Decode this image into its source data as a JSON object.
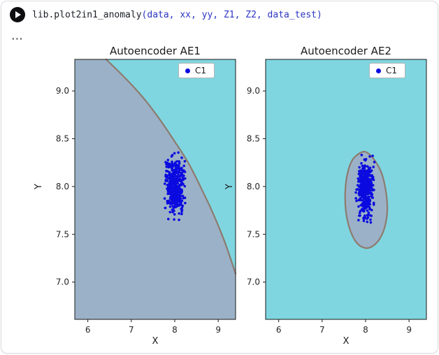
{
  "header": {
    "code_function": "lib.plot2in1_anomaly",
    "code_args": "(data, xx, yy, Z1, Z2, data_test)",
    "more_icon": "⋯"
  },
  "chart_data": [
    {
      "type": "scatter",
      "subtype": "decision-boundary-contour",
      "title": "Autoencoder AE1",
      "xlabel": "X",
      "ylabel": "Y",
      "xlim": [
        5.7,
        9.4
      ],
      "ylim": [
        6.61,
        9.33
      ],
      "xticks": [
        "6",
        "7",
        "8",
        "9"
      ],
      "yticks": [
        "7.0",
        "7.5",
        "8.0",
        "8.5",
        "9.0"
      ],
      "legend": [
        {
          "label": "C1",
          "color": "#0b0be0"
        }
      ],
      "legend_loc": "upper right",
      "grid": false,
      "colors": {
        "background": "#7fd6e0",
        "region": "#9bb1c7",
        "boundary": "#8d7b6f"
      },
      "boundary": [
        [
          6.42,
          9.33
        ],
        [
          6.74,
          9.19
        ],
        [
          7.06,
          9.04
        ],
        [
          7.38,
          8.87
        ],
        [
          7.69,
          8.68
        ],
        [
          8.0,
          8.47
        ],
        [
          8.31,
          8.25
        ],
        [
          8.6,
          7.99
        ],
        [
          8.88,
          7.72
        ],
        [
          9.15,
          7.42
        ],
        [
          9.4,
          7.09
        ]
      ],
      "region_close": [
        [
          9.4,
          6.61
        ],
        [
          5.7,
          6.61
        ],
        [
          5.7,
          9.33
        ]
      ],
      "cluster": {
        "label": "C1",
        "center": [
          8.0,
          8.0
        ],
        "std": [
          0.1,
          0.15
        ],
        "count": 420,
        "seed": 12,
        "color": "#0b0be0",
        "radius": 1.8
      }
    },
    {
      "type": "scatter",
      "subtype": "decision-boundary-contour",
      "title": "Autoencoder AE2",
      "xlabel": "X",
      "ylabel": "Y",
      "xlim": [
        5.7,
        9.4
      ],
      "ylim": [
        6.61,
        9.33
      ],
      "xticks": [
        "6",
        "7",
        "8",
        "9"
      ],
      "yticks": [
        "7.0",
        "7.5",
        "8.0",
        "8.5",
        "9.0"
      ],
      "legend": [
        {
          "label": "C1",
          "color": "#0b0be0"
        }
      ],
      "legend_loc": "upper right",
      "grid": false,
      "colors": {
        "background": "#7fd6e0",
        "region": "#9bb1c7",
        "boundary": "#8d7b6f"
      },
      "blob": [
        [
          8.02,
          8.36
        ],
        [
          8.2,
          8.28
        ],
        [
          8.36,
          8.15
        ],
        [
          8.46,
          7.97
        ],
        [
          8.5,
          7.77
        ],
        [
          8.45,
          7.59
        ],
        [
          8.32,
          7.45
        ],
        [
          8.14,
          7.37
        ],
        [
          7.96,
          7.36
        ],
        [
          7.78,
          7.42
        ],
        [
          7.64,
          7.55
        ],
        [
          7.55,
          7.73
        ],
        [
          7.53,
          7.93
        ],
        [
          7.58,
          8.13
        ],
        [
          7.7,
          8.28
        ],
        [
          7.87,
          8.35
        ]
      ],
      "cluster": {
        "label": "C1",
        "center": [
          7.99,
          7.98
        ],
        "std": [
          0.09,
          0.15
        ],
        "count": 420,
        "seed": 99,
        "color": "#0b0be0",
        "radius": 1.8
      }
    }
  ]
}
